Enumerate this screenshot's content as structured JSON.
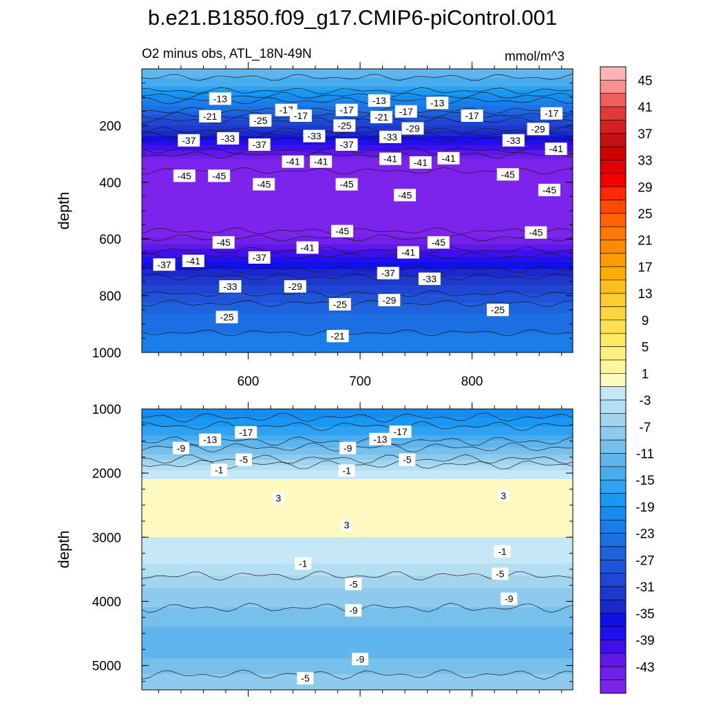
{
  "chart_data": {
    "type": "heatmap",
    "title": "b.e21.B1850.f09_g17.CMIP6-piControl.001",
    "left_subtitle": "O2 minus obs, ATL_18N-49N",
    "units": "mmol/m^3",
    "panels": [
      {
        "name": "upper",
        "ylabel": "depth",
        "ylim": [
          1000,
          0
        ],
        "xlim": [
          505,
          890
        ],
        "yticks": [
          200,
          400,
          600,
          800,
          1000
        ],
        "xticks": [
          600,
          700,
          800
        ],
        "depth_profile": [
          {
            "depth": 0,
            "value": -9
          },
          {
            "depth": 60,
            "value": -13
          },
          {
            "depth": 130,
            "value": -21
          },
          {
            "depth": 200,
            "value": -29
          },
          {
            "depth": 270,
            "value": -37
          },
          {
            "depth": 320,
            "value": -43
          },
          {
            "depth": 380,
            "value": -46
          },
          {
            "depth": 560,
            "value": -46
          },
          {
            "depth": 620,
            "value": -41
          },
          {
            "depth": 680,
            "value": -35
          },
          {
            "depth": 760,
            "value": -29
          },
          {
            "depth": 860,
            "value": -23
          },
          {
            "depth": 1000,
            "value": -19
          }
        ],
        "contour_labels": [
          {
            "text": "-13",
            "x": 575,
            "depth": 105
          },
          {
            "text": "-17",
            "x": 634,
            "depth": 145
          },
          {
            "text": "-17",
            "x": 647,
            "depth": 165
          },
          {
            "text": "-17",
            "x": 688,
            "depth": 145
          },
          {
            "text": "-13",
            "x": 717,
            "depth": 112
          },
          {
            "text": "-17",
            "x": 741,
            "depth": 150
          },
          {
            "text": "-13",
            "x": 769,
            "depth": 120
          },
          {
            "text": "-17",
            "x": 800,
            "depth": 165
          },
          {
            "text": "-17",
            "x": 871,
            "depth": 157
          },
          {
            "text": "-21",
            "x": 566,
            "depth": 167
          },
          {
            "text": "-25",
            "x": 611,
            "depth": 182
          },
          {
            "text": "-21",
            "x": 719,
            "depth": 170
          },
          {
            "text": "-25",
            "x": 686,
            "depth": 200
          },
          {
            "text": "-29",
            "x": 747,
            "depth": 210
          },
          {
            "text": "-29",
            "x": 859,
            "depth": 212
          },
          {
            "text": "-37",
            "x": 547,
            "depth": 252
          },
          {
            "text": "-33",
            "x": 582,
            "depth": 245
          },
          {
            "text": "-37",
            "x": 610,
            "depth": 267
          },
          {
            "text": "-33",
            "x": 659,
            "depth": 237
          },
          {
            "text": "-33",
            "x": 727,
            "depth": 240
          },
          {
            "text": "-37",
            "x": 688,
            "depth": 267
          },
          {
            "text": "-33",
            "x": 837,
            "depth": 252
          },
          {
            "text": "-41",
            "x": 875,
            "depth": 282
          },
          {
            "text": "-41",
            "x": 640,
            "depth": 327
          },
          {
            "text": "-41",
            "x": 665,
            "depth": 327
          },
          {
            "text": "-41",
            "x": 727,
            "depth": 317
          },
          {
            "text": "-41",
            "x": 754,
            "depth": 330
          },
          {
            "text": "-41",
            "x": 779,
            "depth": 315
          },
          {
            "text": "-45",
            "x": 543,
            "depth": 377
          },
          {
            "text": "-45",
            "x": 574,
            "depth": 377
          },
          {
            "text": "-45",
            "x": 614,
            "depth": 407
          },
          {
            "text": "-45",
            "x": 688,
            "depth": 407
          },
          {
            "text": "-45",
            "x": 740,
            "depth": 445
          },
          {
            "text": "-45",
            "x": 832,
            "depth": 372
          },
          {
            "text": "-45",
            "x": 869,
            "depth": 427
          },
          {
            "text": "-45",
            "x": 857,
            "depth": 577
          },
          {
            "text": "-45",
            "x": 578,
            "depth": 612
          },
          {
            "text": "-45",
            "x": 684,
            "depth": 572
          },
          {
            "text": "-45",
            "x": 770,
            "depth": 612
          },
          {
            "text": "-41",
            "x": 551,
            "depth": 677
          },
          {
            "text": "-37",
            "x": 525,
            "depth": 690
          },
          {
            "text": "-37",
            "x": 610,
            "depth": 665
          },
          {
            "text": "-41",
            "x": 653,
            "depth": 630
          },
          {
            "text": "-41",
            "x": 743,
            "depth": 647
          },
          {
            "text": "-37",
            "x": 725,
            "depth": 720
          },
          {
            "text": "-33",
            "x": 584,
            "depth": 767
          },
          {
            "text": "-29",
            "x": 642,
            "depth": 767
          },
          {
            "text": "-33",
            "x": 762,
            "depth": 740
          },
          {
            "text": "-29",
            "x": 726,
            "depth": 815
          },
          {
            "text": "-25",
            "x": 682,
            "depth": 830
          },
          {
            "text": "-25",
            "x": 581,
            "depth": 875
          },
          {
            "text": "-25",
            "x": 823,
            "depth": 850
          },
          {
            "text": "-21",
            "x": 680,
            "depth": 942
          }
        ]
      },
      {
        "name": "lower",
        "ylabel": "depth",
        "ylim": [
          5380,
          1000
        ],
        "xlim": [
          505,
          890
        ],
        "yticks": [
          1000,
          2000,
          3000,
          4000,
          5000
        ],
        "xticks": [
          600,
          700,
          800
        ],
        "depth_profile": [
          {
            "depth": 1000,
            "value": -19
          },
          {
            "depth": 1400,
            "value": -13
          },
          {
            "depth": 1700,
            "value": -7
          },
          {
            "depth": 1950,
            "value": -1
          },
          {
            "depth": 2100,
            "value": 1
          },
          {
            "depth": 2500,
            "value": 3
          },
          {
            "depth": 3000,
            "value": 1
          },
          {
            "depth": 3400,
            "value": -1
          },
          {
            "depth": 3800,
            "value": -5
          },
          {
            "depth": 4400,
            "value": -9
          },
          {
            "depth": 4900,
            "value": -9
          },
          {
            "depth": 5380,
            "value": -5
          }
        ],
        "contour_labels": [
          {
            "text": "-17",
            "x": 598,
            "depth": 1365
          },
          {
            "text": "-17",
            "x": 736,
            "depth": 1355
          },
          {
            "text": "-13",
            "x": 566,
            "depth": 1480
          },
          {
            "text": "-13",
            "x": 718,
            "depth": 1470
          },
          {
            "text": "-9",
            "x": 540,
            "depth": 1610
          },
          {
            "text": "-9",
            "x": 689,
            "depth": 1610
          },
          {
            "text": "-5",
            "x": 596,
            "depth": 1790
          },
          {
            "text": "-5",
            "x": 742,
            "depth": 1790
          },
          {
            "text": "-1",
            "x": 574,
            "depth": 1950
          },
          {
            "text": "-1",
            "x": 688,
            "depth": 1960
          },
          {
            "text": "3",
            "x": 627,
            "depth": 2390
          },
          {
            "text": "3",
            "x": 828,
            "depth": 2350
          },
          {
            "text": "3",
            "x": 688,
            "depth": 2810
          },
          {
            "text": "-1",
            "x": 827,
            "depth": 3220
          },
          {
            "text": "-1",
            "x": 649,
            "depth": 3410
          },
          {
            "text": "-5",
            "x": 825,
            "depth": 3570
          },
          {
            "text": "-5",
            "x": 694,
            "depth": 3730
          },
          {
            "text": "-9",
            "x": 833,
            "depth": 3960
          },
          {
            "text": "-9",
            "x": 694,
            "depth": 4140
          },
          {
            "text": "-9",
            "x": 700,
            "depth": 4900
          },
          {
            "text": "-5",
            "x": 651,
            "depth": 5200
          }
        ]
      }
    ],
    "colorbar": {
      "tick_labels": [
        "45",
        "41",
        "37",
        "33",
        "29",
        "25",
        "21",
        "17",
        "13",
        "9",
        "5",
        "1",
        "-3",
        "-7",
        "-11",
        "-15",
        "-19",
        "-23",
        "-27",
        "-31",
        "-35",
        "-39",
        "-43"
      ],
      "levels_top_to_bottom": [
        49,
        47,
        45,
        43,
        41,
        39,
        37,
        35,
        33,
        31,
        29,
        27,
        25,
        23,
        21,
        19,
        17,
        15,
        13,
        11,
        9,
        7,
        5,
        3,
        1,
        -1,
        -3,
        -5,
        -7,
        -9,
        -11,
        -13,
        -15,
        -17,
        -19,
        -21,
        -23,
        -25,
        -27,
        -29,
        -31,
        -33,
        -35,
        -37,
        -39,
        -41,
        -43,
        -45
      ],
      "colors_top_to_bottom": [
        "#FFB4B4",
        "#F89090",
        "#EE6060",
        "#E03A3A",
        "#D42020",
        "#C41010",
        "#D00000",
        "#E00000",
        "#F20000",
        "#FF2A00",
        "#FF4A00",
        "#FF6400",
        "#FF7800",
        "#FF8A00",
        "#FF9C00",
        "#FFAE00",
        "#FFBE1E",
        "#FFCC30",
        "#FFD640",
        "#FFE050",
        "#FFEA66",
        "#FFF080",
        "#FFF5A0",
        "#FFFAC0",
        "#C6E8F6",
        "#B4DEF2",
        "#A2D4EE",
        "#8ECAEE",
        "#78C0EC",
        "#60B6EC",
        "#48ACEE",
        "#2EA2F0",
        "#1898F2",
        "#168CEE",
        "#1A7EEA",
        "#1C70E4",
        "#1E62DE",
        "#1E54D8",
        "#1E46D2",
        "#1E38CC",
        "#1A28CC",
        "#1010E6",
        "#2010F0",
        "#4010EC",
        "#6018E8",
        "#7020E8",
        "#7C24EC"
      ]
    }
  }
}
